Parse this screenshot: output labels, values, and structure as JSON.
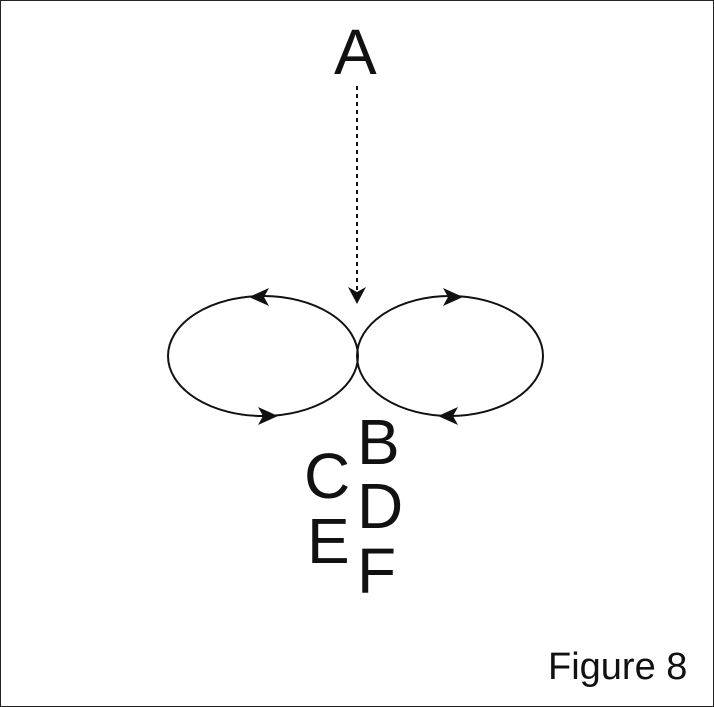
{
  "labels": {
    "a": "A",
    "b": "B",
    "c": "C",
    "d": "D",
    "e": "E",
    "f": "F"
  },
  "caption": "Figure 8",
  "colors": {
    "ink": "#111111",
    "frame": "#222222",
    "background": "#ffffff"
  }
}
